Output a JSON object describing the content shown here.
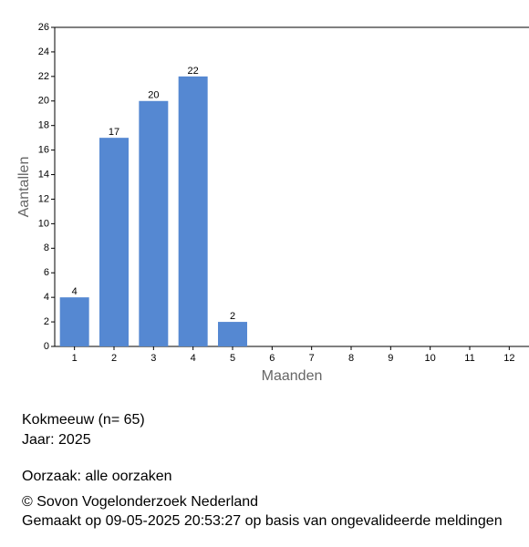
{
  "chart_data": {
    "type": "bar",
    "categories": [
      "1",
      "2",
      "3",
      "4",
      "5",
      "6",
      "7",
      "8",
      "9",
      "10",
      "11",
      "12"
    ],
    "values": [
      4,
      17,
      20,
      22,
      2,
      0,
      0,
      0,
      0,
      0,
      0,
      0
    ],
    "color": "#5588d2",
    "x_label": "Maanden",
    "y_label": "Aantallen",
    "ylim": [
      0,
      26
    ],
    "yticks": [
      0,
      2,
      4,
      6,
      8,
      10,
      12,
      14,
      16,
      18,
      20,
      22,
      24,
      26
    ]
  },
  "info": {
    "species": "Kokmeeuw  (n= 65)",
    "year": "Jaar: 2025",
    "cause": "Oorzaak: alle oorzaken",
    "copyright": "© Sovon Vogelonderzoek Nederland",
    "made": "Gemaakt op 09-05-2025 20:53:27 op basis van ongevalideerde meldingen"
  }
}
